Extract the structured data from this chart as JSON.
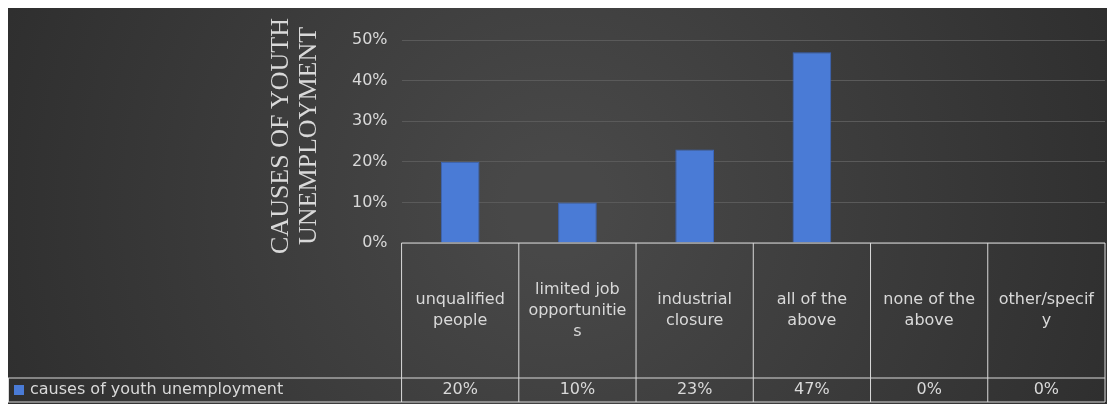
{
  "chart_data": {
    "type": "bar",
    "ylabel": "CAUSES OF YOUTH UNEMPLOYMENT",
    "categories": [
      "unqualified people",
      "limited job opportunities",
      "industrial closure",
      "all of the above",
      "none of the above",
      "other/specify"
    ],
    "series": [
      {
        "name": "causes of youth unemployment",
        "color": "#4a7bd6",
        "values": [
          20,
          10,
          23,
          47,
          0,
          0
        ],
        "value_labels": [
          "20%",
          "10%",
          "23%",
          "47%",
          "0%",
          "0%"
        ]
      }
    ],
    "ylim": [
      0,
      50
    ],
    "yticks": [
      {
        "value": 0,
        "label": "0%"
      },
      {
        "value": 10,
        "label": "10%"
      },
      {
        "value": 20,
        "label": "20%"
      },
      {
        "value": 30,
        "label": "30%"
      },
      {
        "value": 40,
        "label": "40%"
      },
      {
        "value": 50,
        "label": "50%"
      }
    ],
    "grid": "y",
    "legend": "bottom"
  }
}
